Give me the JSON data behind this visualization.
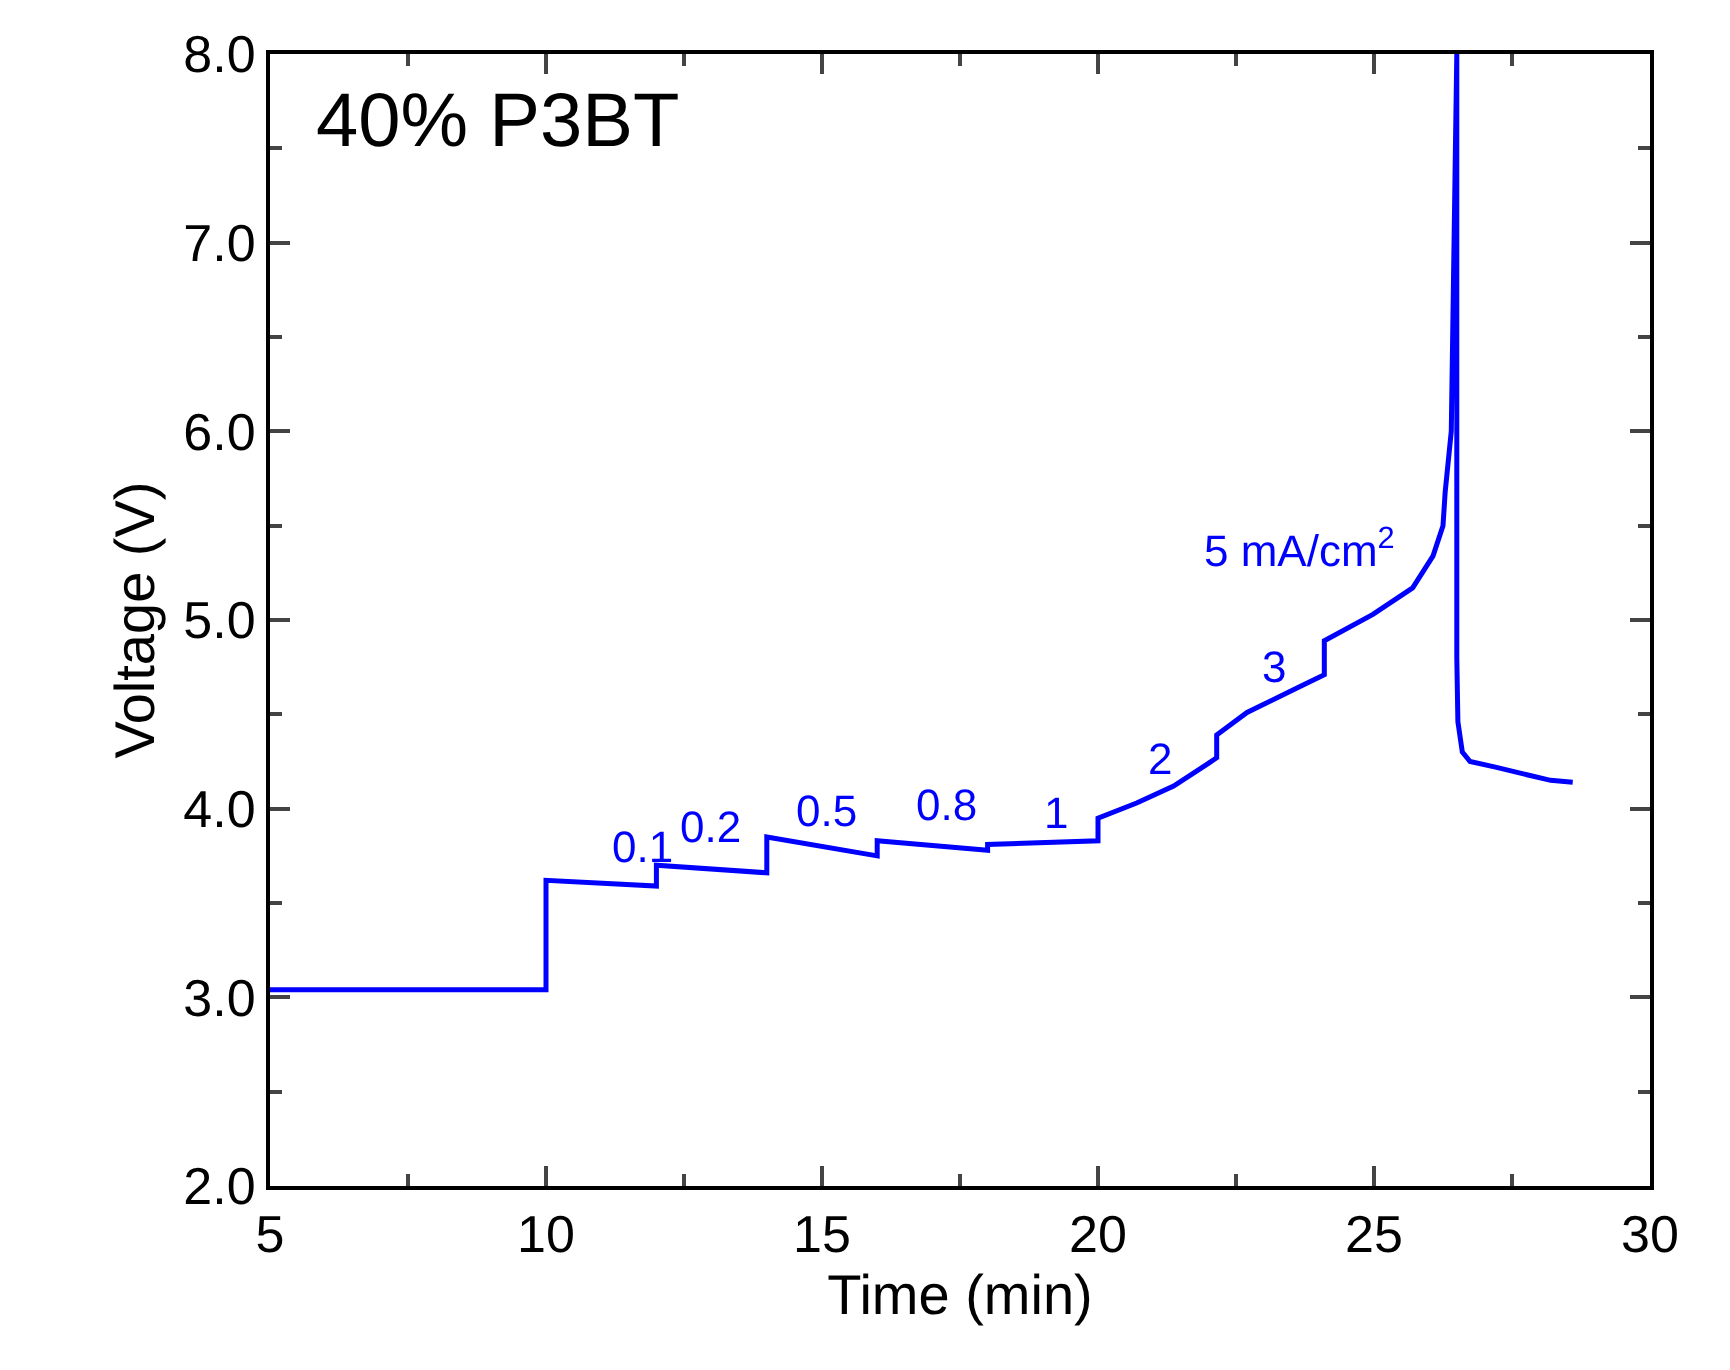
{
  "chart_data": {
    "type": "line",
    "title": "40% P3BT",
    "xlabel": "Time (min)",
    "ylabel": "Voltage (V)",
    "xlim": [
      5,
      30
    ],
    "xticks": [
      5,
      10,
      15,
      20,
      25,
      30
    ],
    "ylim": [
      2,
      8
    ],
    "yticks": [
      {
        "value": 2,
        "label": "2.0"
      },
      {
        "value": 3,
        "label": "3.0"
      },
      {
        "value": 4,
        "label": "4.0"
      },
      {
        "value": 5,
        "label": "5.0"
      },
      {
        "value": 6,
        "label": "6.0"
      },
      {
        "value": 7,
        "label": "7.0"
      },
      {
        "value": 8,
        "label": "8.0"
      }
    ],
    "grid": false,
    "marker": "none",
    "line_style": "solid",
    "series": [
      {
        "color": "#0000ff",
        "x": [
          5,
          10,
          10,
          12,
          12,
          14,
          14,
          16,
          16,
          18,
          18,
          20,
          20,
          20.7,
          21.37,
          22,
          22.15,
          22.15,
          22.7,
          23.54,
          24.1,
          24.1,
          24.98,
          25.7,
          26.07,
          26.25,
          26.29,
          26.4,
          26.5,
          26.5,
          26.52,
          26.6,
          26.74,
          27.2,
          27.77,
          28.2,
          28.6
        ],
        "values": [
          3.04,
          3.04,
          3.62,
          3.59,
          3.7,
          3.66,
          3.85,
          3.75,
          3.83,
          3.78,
          3.81,
          3.83,
          3.95,
          4.03,
          4.12,
          4.24,
          4.27,
          4.39,
          4.51,
          4.63,
          4.71,
          4.89,
          5.03,
          5.17,
          5.34,
          5.5,
          5.68,
          6.0,
          8.0,
          4.8,
          4.46,
          4.3,
          4.25,
          4.22,
          4.18,
          4.15,
          4.14
        ]
      }
    ],
    "annotations": [
      "0.1",
      "0.2",
      "0.5",
      "0.8",
      "1",
      "2",
      "3",
      "5 mA/cm$^{2}$"
    ]
  }
}
